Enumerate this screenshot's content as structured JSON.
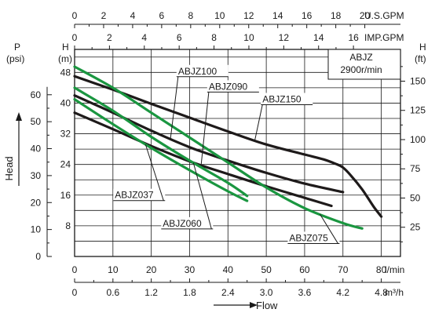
{
  "chart_data": {
    "type": "line",
    "annotation": [
      "ABJZ",
      "2900r/min"
    ],
    "axes": {
      "flow_lmin": {
        "label": "l/min",
        "ticks": [
          "0",
          "10",
          "20",
          "30",
          "40",
          "50",
          "60",
          "70",
          "80"
        ],
        "range": [
          0,
          85
        ]
      },
      "flow_m3h": {
        "label": "m³/h",
        "ticks": [
          "0",
          "0.6",
          "1.2",
          "1.8",
          "2.4",
          "3.0",
          "3.6",
          "4.2",
          "4.8"
        ]
      },
      "flow_usgpm": {
        "label": "U.S.GPM",
        "ticks": [
          "0",
          "2",
          "4",
          "6",
          "8",
          "10",
          "12",
          "14",
          "16",
          "18",
          "20"
        ]
      },
      "flow_impgpm": {
        "label": "IMP.GPM",
        "ticks": [
          "0",
          "2",
          "4",
          "6",
          "8",
          "10",
          "12",
          "14",
          "16"
        ]
      },
      "head_m": {
        "label": "H",
        "unit": "(m)",
        "ticks": [
          "8",
          "16",
          "24",
          "32",
          "40",
          "48"
        ],
        "range": [
          0,
          54
        ]
      },
      "head_ft": {
        "label": "H",
        "unit": "(ft)",
        "ticks": [
          "25",
          "50",
          "75",
          "100",
          "125",
          "150"
        ]
      },
      "pressure_psi": {
        "label": "P",
        "unit": "(psi)",
        "ticks": [
          "0",
          "10",
          "20",
          "30",
          "40",
          "50",
          "60"
        ]
      }
    },
    "flow_label": "Flow",
    "head_label": "Head",
    "grid": true,
    "series": [
      {
        "name": "ABJZ150",
        "color": "#1e1a1a",
        "label_at": [
          49,
          40.2
        ],
        "x": [
          0,
          10,
          20,
          30,
          40,
          50,
          60,
          65,
          68,
          70,
          72,
          75,
          78,
          80
        ],
        "y": [
          47,
          43.5,
          39.8,
          36.2,
          32.6,
          29.2,
          26.6,
          25.3,
          24.2,
          23.2,
          21.2,
          17.5,
          13,
          10.4
        ]
      },
      {
        "name": "ABJZ100",
        "color": "#1e1a1a",
        "label_at": [
          27,
          47.5
        ],
        "x": [
          0,
          10,
          20,
          30,
          40,
          50,
          60,
          70
        ],
        "y": [
          42,
          37.5,
          32.8,
          28.5,
          25.0,
          21.8,
          19.0,
          16.8
        ]
      },
      {
        "name": "ABJZ090",
        "color": "#1e1a1a",
        "label_at": [
          35,
          43.5
        ],
        "x": [
          0,
          10,
          20,
          30,
          40,
          50,
          60,
          67
        ],
        "y": [
          37.5,
          33.2,
          28.8,
          24.8,
          21.5,
          18.3,
          15.3,
          13.2
        ]
      },
      {
        "name": "ABJZ075",
        "color": "#1a9640",
        "label_at": [
          56,
          4
        ],
        "x": [
          0,
          10,
          20,
          30,
          40,
          50,
          60,
          70,
          75
        ],
        "y": [
          49.5,
          44.0,
          37.5,
          31.0,
          24.5,
          18.0,
          12.6,
          8.7,
          7.3
        ]
      },
      {
        "name": "ABJZ060",
        "color": "#1a9640",
        "label_at": [
          23,
          7.8
        ],
        "x": [
          0,
          10,
          20,
          30,
          40,
          45
        ],
        "y": [
          44.0,
          38.0,
          31.2,
          25.0,
          19.2,
          15.8
        ]
      },
      {
        "name": "ABJZ037",
        "color": "#1a9640",
        "label_at": [
          10.5,
          15.2
        ],
        "x": [
          0,
          10,
          20,
          30,
          40,
          45
        ],
        "y": [
          41.0,
          34.5,
          28.3,
          22.5,
          17.0,
          14.5
        ]
      }
    ]
  }
}
